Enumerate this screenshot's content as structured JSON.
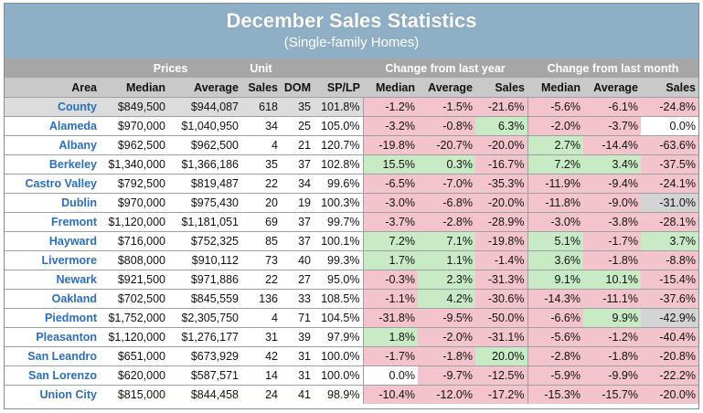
{
  "title": "December Sales Statistics",
  "subtitle": "(Single-family Homes)",
  "group_headers": {
    "prices": "Prices",
    "unit": "Unit",
    "change_year": "Change from last year",
    "change_month": "Change from last month"
  },
  "columns": [
    "Area",
    "Median",
    "Average",
    "Sales",
    "DOM",
    "SP/LP",
    "Median",
    "Average",
    "Sales",
    "Median",
    "Average",
    "Sales"
  ],
  "colors": {
    "negative": "#f4c4cc",
    "positive": "#c8ebc6",
    "header_band": "#8fafc7",
    "area_text": "#2b6fba"
  },
  "rows": [
    {
      "area": "County",
      "median": "$849,500",
      "average": "$944,087",
      "sales": "618",
      "dom": "35",
      "splp": "101.8%",
      "y_median": "-1.2%",
      "y_average": "-1.5%",
      "y_sales": "-21.6%",
      "m_median": "-5.6%",
      "m_average": "-6.1%",
      "m_sales": "-24.8%"
    },
    {
      "area": "Alameda",
      "median": "$970,000",
      "average": "$1,040,950",
      "sales": "34",
      "dom": "25",
      "splp": "105.0%",
      "y_median": "-3.2%",
      "y_average": "-0.8%",
      "y_sales": "6.3%",
      "m_median": "-2.0%",
      "m_average": "-3.7%",
      "m_sales": "0.0%"
    },
    {
      "area": "Albany",
      "median": "$962,500",
      "average": "$962,500",
      "sales": "4",
      "dom": "21",
      "splp": "120.7%",
      "y_median": "-19.8%",
      "y_average": "-20.7%",
      "y_sales": "-20.0%",
      "m_median": "2.7%",
      "m_average": "-14.4%",
      "m_sales": "-63.6%"
    },
    {
      "area": "Berkeley",
      "median": "$1,340,000",
      "average": "$1,366,186",
      "sales": "35",
      "dom": "37",
      "splp": "102.8%",
      "y_median": "15.5%",
      "y_average": "0.3%",
      "y_sales": "-16.7%",
      "m_median": "7.2%",
      "m_average": "3.4%",
      "m_sales": "-37.5%"
    },
    {
      "area": "Castro Valley",
      "median": "$792,500",
      "average": "$819,487",
      "sales": "22",
      "dom": "34",
      "splp": "99.6%",
      "y_median": "-6.5%",
      "y_average": "-7.0%",
      "y_sales": "-35.3%",
      "m_median": "-11.9%",
      "m_average": "-9.4%",
      "m_sales": "-24.1%"
    },
    {
      "area": "Dublin",
      "median": "$970,000",
      "average": "$975,430",
      "sales": "20",
      "dom": "19",
      "splp": "100.3%",
      "y_median": "-3.0%",
      "y_average": "-6.8%",
      "y_sales": "-20.0%",
      "m_median": "-11.8%",
      "m_average": "-9.0%",
      "m_sales": "-31.0%"
    },
    {
      "area": "Fremont",
      "median": "$1,120,000",
      "average": "$1,181,051",
      "sales": "69",
      "dom": "37",
      "splp": "99.7%",
      "y_median": "-3.7%",
      "y_average": "-2.8%",
      "y_sales": "-28.9%",
      "m_median": "-3.0%",
      "m_average": "-3.8%",
      "m_sales": "-28.1%"
    },
    {
      "area": "Hayward",
      "median": "$716,000",
      "average": "$752,325",
      "sales": "85",
      "dom": "37",
      "splp": "100.1%",
      "y_median": "7.2%",
      "y_average": "7.1%",
      "y_sales": "-19.8%",
      "m_median": "5.1%",
      "m_average": "-1.7%",
      "m_sales": "3.7%"
    },
    {
      "area": "Livermore",
      "median": "$808,000",
      "average": "$910,112",
      "sales": "73",
      "dom": "40",
      "splp": "99.3%",
      "y_median": "1.7%",
      "y_average": "1.1%",
      "y_sales": "-1.4%",
      "m_median": "3.6%",
      "m_average": "-1.8%",
      "m_sales": "-8.8%"
    },
    {
      "area": "Newark",
      "median": "$921,500",
      "average": "$971,886",
      "sales": "22",
      "dom": "27",
      "splp": "95.0%",
      "y_median": "-0.3%",
      "y_average": "2.3%",
      "y_sales": "-31.3%",
      "m_median": "9.1%",
      "m_average": "10.1%",
      "m_sales": "-15.4%"
    },
    {
      "area": "Oakland",
      "median": "$702,500",
      "average": "$845,559",
      "sales": "136",
      "dom": "33",
      "splp": "108.5%",
      "y_median": "-1.1%",
      "y_average": "4.2%",
      "y_sales": "-30.6%",
      "m_median": "-14.3%",
      "m_average": "-11.1%",
      "m_sales": "-37.6%"
    },
    {
      "area": "Piedmont",
      "median": "$1,752,000",
      "average": "$2,305,750",
      "sales": "4",
      "dom": "71",
      "splp": "104.5%",
      "y_median": "-31.8%",
      "y_average": "-9.5%",
      "y_sales": "-50.0%",
      "m_median": "-6.6%",
      "m_average": "9.9%",
      "m_sales": "-42.9%"
    },
    {
      "area": "Pleasanton",
      "median": "$1,120,000",
      "average": "$1,276,177",
      "sales": "31",
      "dom": "39",
      "splp": "97.9%",
      "y_median": "1.8%",
      "y_average": "-2.0%",
      "y_sales": "-31.1%",
      "m_median": "-5.6%",
      "m_average": "-1.2%",
      "m_sales": "-40.4%"
    },
    {
      "area": "San Leandro",
      "median": "$651,000",
      "average": "$673,929",
      "sales": "42",
      "dom": "31",
      "splp": "100.0%",
      "y_median": "-1.7%",
      "y_average": "-1.8%",
      "y_sales": "20.0%",
      "m_median": "-2.8%",
      "m_average": "-1.8%",
      "m_sales": "-20.8%"
    },
    {
      "area": "San Lorenzo",
      "median": "$620,000",
      "average": "$587,571",
      "sales": "14",
      "dom": "31",
      "splp": "100.0%",
      "y_median": "0.0%",
      "y_average": "-9.7%",
      "y_sales": "-12.5%",
      "m_median": "-5.9%",
      "m_average": "-9.9%",
      "m_sales": "-22.2%"
    },
    {
      "area": "Union City",
      "median": "$815,000",
      "average": "$844,458",
      "sales": "24",
      "dom": "41",
      "splp": "98.9%",
      "y_median": "-10.4%",
      "y_average": "-12.0%",
      "y_sales": "-17.2%",
      "m_median": "-15.3%",
      "m_average": "-15.7%",
      "m_sales": "-20.0%"
    }
  ]
}
